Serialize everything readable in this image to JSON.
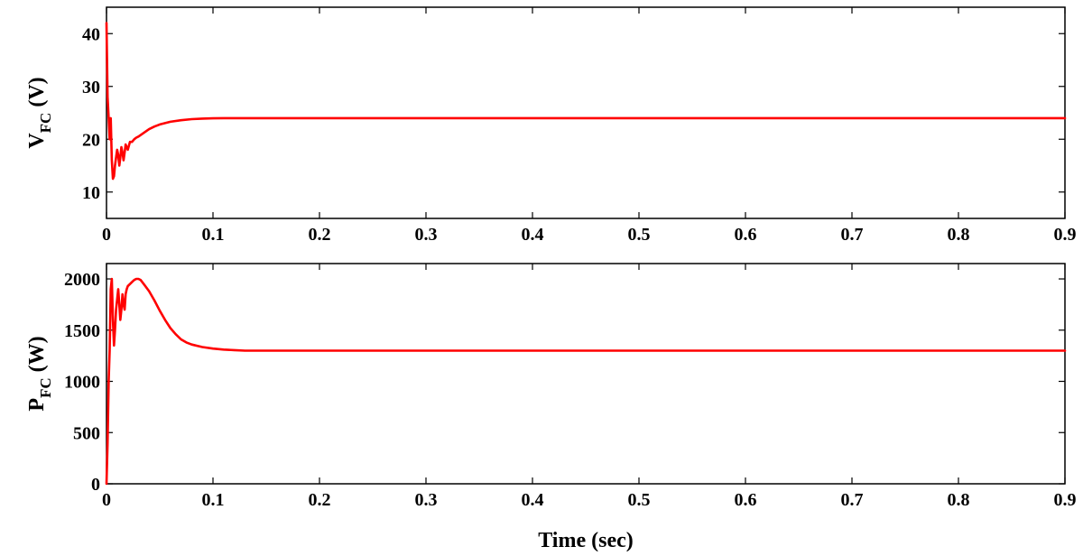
{
  "colors": {
    "line": "#ff0000",
    "axis": "#000000",
    "background": "#ffffff"
  },
  "chart_data": [
    {
      "type": "line",
      "title": "",
      "ylabel": {
        "main": "V",
        "sub": "FC",
        "unit": " (V)"
      },
      "xlabel": "",
      "xlim": [
        0,
        0.9
      ],
      "ylim": [
        5,
        45
      ],
      "xticks": [
        0,
        0.1,
        0.2,
        0.3,
        0.4,
        0.5,
        0.6,
        0.7,
        0.8,
        0.9
      ],
      "xtick_labels": [
        "0",
        "0.1",
        "0.2",
        "0.3",
        "0.4",
        "0.5",
        "0.6",
        "0.7",
        "0.8",
        "0.9"
      ],
      "yticks": [
        10,
        20,
        30,
        40
      ],
      "ytick_labels": [
        "10",
        "20",
        "30",
        "40"
      ],
      "grid": false,
      "series": [
        {
          "color": "#ff0000",
          "x": [
            0,
            0.001,
            0.002,
            0.003,
            0.004,
            0.005,
            0.006,
            0.007,
            0.008,
            0.009,
            0.01,
            0.011,
            0.012,
            0.013,
            0.014,
            0.015,
            0.016,
            0.017,
            0.018,
            0.019,
            0.02,
            0.022,
            0.024,
            0.026,
            0.028,
            0.03,
            0.035,
            0.04,
            0.045,
            0.05,
            0.06,
            0.07,
            0.08,
            0.09,
            0.1,
            0.11,
            0.12,
            0.14,
            0.16,
            0.2,
            0.3,
            0.5,
            0.7,
            0.9
          ],
          "y": [
            42,
            28,
            24,
            20,
            24,
            16,
            12.5,
            13,
            15,
            16.5,
            18,
            17,
            15,
            16.5,
            18.5,
            17.5,
            16,
            17.5,
            19,
            18.5,
            18,
            19.5,
            19.5,
            20,
            20.3,
            20.5,
            21.2,
            21.9,
            22.4,
            22.8,
            23.3,
            23.6,
            23.8,
            23.9,
            23.95,
            24,
            24,
            24,
            24,
            24,
            24,
            24,
            24,
            24
          ]
        }
      ]
    },
    {
      "type": "line",
      "title": "",
      "ylabel": {
        "main": "P",
        "sub": "FC",
        "unit": " (W)"
      },
      "xlabel": "Time (sec)",
      "xlim": [
        0,
        0.9
      ],
      "ylim": [
        0,
        2150
      ],
      "xticks": [
        0,
        0.1,
        0.2,
        0.3,
        0.4,
        0.5,
        0.6,
        0.7,
        0.8,
        0.9
      ],
      "xtick_labels": [
        "0",
        "0.1",
        "0.2",
        "0.3",
        "0.4",
        "0.5",
        "0.6",
        "0.7",
        "0.8",
        "0.9"
      ],
      "yticks": [
        0,
        500,
        1000,
        1500,
        2000
      ],
      "ytick_labels": [
        "0",
        "500",
        "1000",
        "1500",
        "2000"
      ],
      "grid": false,
      "series": [
        {
          "color": "#ff0000",
          "x": [
            0,
            0.001,
            0.002,
            0.003,
            0.004,
            0.005,
            0.006,
            0.007,
            0.008,
            0.009,
            0.01,
            0.011,
            0.012,
            0.013,
            0.014,
            0.015,
            0.016,
            0.017,
            0.018,
            0.019,
            0.02,
            0.022,
            0.024,
            0.026,
            0.028,
            0.03,
            0.032,
            0.035,
            0.04,
            0.045,
            0.05,
            0.055,
            0.06,
            0.065,
            0.07,
            0.075,
            0.08,
            0.09,
            0.1,
            0.11,
            0.12,
            0.13,
            0.15,
            0.2,
            0.3,
            0.5,
            0.7,
            0.9
          ],
          "y": [
            0,
            400,
            1000,
            1300,
            1900,
            2000,
            1600,
            1350,
            1500,
            1700,
            1800,
            1900,
            1750,
            1600,
            1700,
            1850,
            1750,
            1700,
            1850,
            1900,
            1930,
            1950,
            1970,
            1990,
            2000,
            2000,
            1990,
            1950,
            1880,
            1790,
            1690,
            1600,
            1520,
            1460,
            1410,
            1380,
            1360,
            1335,
            1320,
            1310,
            1305,
            1300,
            1300,
            1300,
            1300,
            1300,
            1300,
            1300
          ],
          "ripple_from": 0.07
        }
      ]
    }
  ]
}
